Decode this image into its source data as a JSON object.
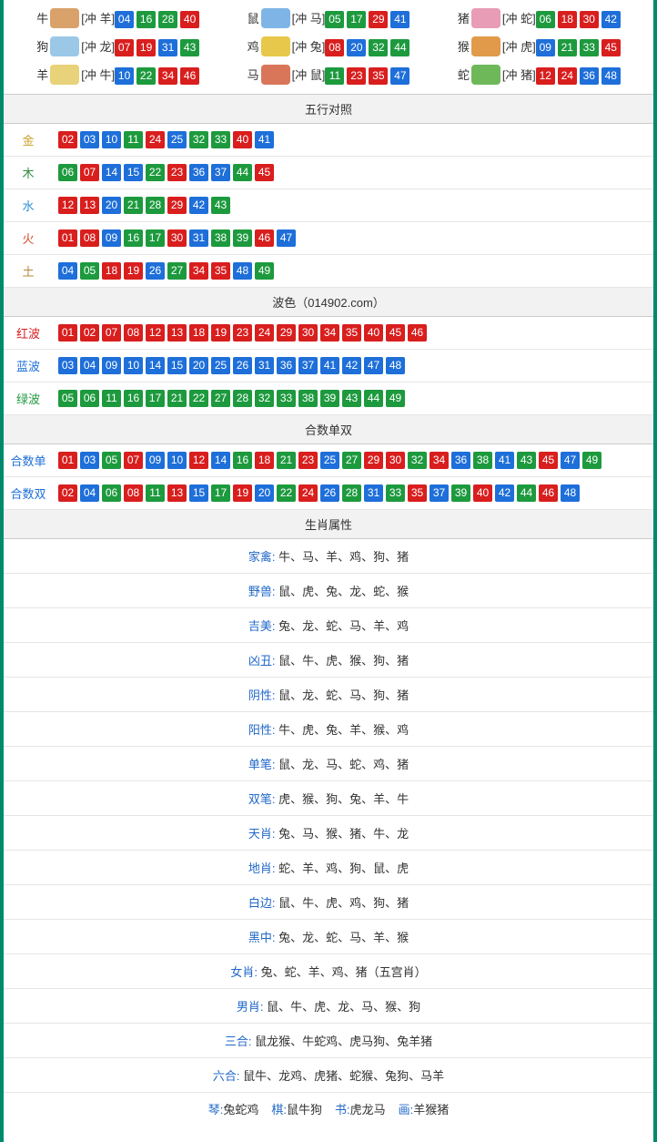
{
  "colors": {
    "red": "#d91e1e",
    "blue": "#1e6fd9",
    "green": "#1d9a3e",
    "border": "#008a6c",
    "hdr_bg": "#f2f2f2",
    "line": "#e5e5e5",
    "text": "#333333",
    "link": "#2168c9",
    "label_gold": "#c9a227",
    "label_wood": "#2e8b3d",
    "label_water": "#2a8dd6",
    "label_fire": "#d94c2a",
    "label_earth": "#b8863b",
    "label_red": "#d91e1e",
    "label_blue": "#1e6fd9",
    "label_green": "#1d9a3e"
  },
  "ball_color_map": {
    "01": "red",
    "02": "red",
    "07": "red",
    "08": "red",
    "12": "red",
    "13": "red",
    "18": "red",
    "19": "red",
    "23": "red",
    "24": "red",
    "29": "red",
    "30": "red",
    "34": "red",
    "35": "red",
    "40": "red",
    "45": "red",
    "46": "red",
    "03": "blue",
    "04": "blue",
    "09": "blue",
    "10": "blue",
    "14": "blue",
    "15": "blue",
    "20": "blue",
    "25": "blue",
    "26": "blue",
    "31": "blue",
    "36": "blue",
    "37": "blue",
    "41": "blue",
    "42": "blue",
    "47": "blue",
    "48": "blue",
    "05": "green",
    "06": "green",
    "11": "green",
    "16": "green",
    "17": "green",
    "21": "green",
    "22": "green",
    "27": "green",
    "28": "green",
    "32": "green",
    "33": "green",
    "38": "green",
    "39": "green",
    "43": "green",
    "44": "green",
    "49": "green"
  },
  "zodiac_img_colors": {
    "牛": "#d9a26b",
    "鼠": "#7fb5e6",
    "猪": "#e89cb5",
    "狗": "#9cc8e8",
    "鸡": "#e8c84a",
    "猴": "#e09a4a",
    "羊": "#e8d27a",
    "马": "#d9765a",
    "蛇": "#6fb85a"
  },
  "zodiac": [
    {
      "name": "牛",
      "conflict": "[冲 羊]",
      "nums": [
        "04",
        "16",
        "28",
        "40"
      ]
    },
    {
      "name": "鼠",
      "conflict": "[冲 马]",
      "nums": [
        "05",
        "17",
        "29",
        "41"
      ]
    },
    {
      "name": "猪",
      "conflict": "[冲 蛇]",
      "nums": [
        "06",
        "18",
        "30",
        "42"
      ]
    },
    {
      "name": "狗",
      "conflict": "[冲 龙]",
      "nums": [
        "07",
        "19",
        "31",
        "43"
      ]
    },
    {
      "name": "鸡",
      "conflict": "[冲 兔]",
      "nums": [
        "08",
        "20",
        "32",
        "44"
      ]
    },
    {
      "name": "猴",
      "conflict": "[冲 虎]",
      "nums": [
        "09",
        "21",
        "33",
        "45"
      ]
    },
    {
      "name": "羊",
      "conflict": "[冲 牛]",
      "nums": [
        "10",
        "22",
        "34",
        "46"
      ]
    },
    {
      "name": "马",
      "conflict": "[冲 鼠]",
      "nums": [
        "11",
        "23",
        "35",
        "47"
      ]
    },
    {
      "name": "蛇",
      "conflict": "[冲 猪]",
      "nums": [
        "12",
        "24",
        "36",
        "48"
      ]
    }
  ],
  "sections": {
    "wuxing_title": "五行对照",
    "wuxing": [
      {
        "label": "金",
        "label_color": "label_gold",
        "nums": [
          "02",
          "03",
          "10",
          "11",
          "24",
          "25",
          "32",
          "33",
          "40",
          "41"
        ]
      },
      {
        "label": "木",
        "label_color": "label_wood",
        "nums": [
          "06",
          "07",
          "14",
          "15",
          "22",
          "23",
          "36",
          "37",
          "44",
          "45"
        ]
      },
      {
        "label": "水",
        "label_color": "label_water",
        "nums": [
          "12",
          "13",
          "20",
          "21",
          "28",
          "29",
          "42",
          "43"
        ]
      },
      {
        "label": "火",
        "label_color": "label_fire",
        "nums": [
          "01",
          "08",
          "09",
          "16",
          "17",
          "30",
          "31",
          "38",
          "39",
          "46",
          "47"
        ]
      },
      {
        "label": "土",
        "label_color": "label_earth",
        "nums": [
          "04",
          "05",
          "18",
          "19",
          "26",
          "27",
          "34",
          "35",
          "48",
          "49"
        ]
      }
    ],
    "bose_title": "波色（014902.com）",
    "bose": [
      {
        "label": "红波",
        "label_color": "label_red",
        "nums": [
          "01",
          "02",
          "07",
          "08",
          "12",
          "13",
          "18",
          "19",
          "23",
          "24",
          "29",
          "30",
          "34",
          "35",
          "40",
          "45",
          "46"
        ]
      },
      {
        "label": "蓝波",
        "label_color": "label_blue",
        "nums": [
          "03",
          "04",
          "09",
          "10",
          "14",
          "15",
          "20",
          "25",
          "26",
          "31",
          "36",
          "37",
          "41",
          "42",
          "47",
          "48"
        ]
      },
      {
        "label": "绿波",
        "label_color": "label_green",
        "nums": [
          "05",
          "06",
          "11",
          "16",
          "17",
          "21",
          "22",
          "27",
          "28",
          "32",
          "33",
          "38",
          "39",
          "43",
          "44",
          "49"
        ]
      }
    ],
    "heshu_title": "合数单双",
    "heshu": [
      {
        "label": "合数单",
        "label_color": "label_blue",
        "nums": [
          "01",
          "03",
          "05",
          "07",
          "09",
          "10",
          "12",
          "14",
          "16",
          "18",
          "21",
          "23",
          "25",
          "27",
          "29",
          "30",
          "32",
          "34",
          "36",
          "38",
          "41",
          "43",
          "45",
          "47",
          "49"
        ]
      },
      {
        "label": "合数双",
        "label_color": "label_blue",
        "nums": [
          "02",
          "04",
          "06",
          "08",
          "11",
          "13",
          "15",
          "17",
          "19",
          "20",
          "22",
          "24",
          "26",
          "28",
          "31",
          "33",
          "35",
          "37",
          "39",
          "40",
          "42",
          "44",
          "46",
          "48"
        ]
      }
    ],
    "attr_title": "生肖属性",
    "attrs": [
      {
        "key": "家禽",
        "val": "牛、马、羊、鸡、狗、猪"
      },
      {
        "key": "野兽",
        "val": "鼠、虎、兔、龙、蛇、猴"
      },
      {
        "key": "吉美",
        "val": "兔、龙、蛇、马、羊、鸡"
      },
      {
        "key": "凶丑",
        "val": "鼠、牛、虎、猴、狗、猪"
      },
      {
        "key": "阴性",
        "val": "鼠、龙、蛇、马、狗、猪"
      },
      {
        "key": "阳性",
        "val": "牛、虎、兔、羊、猴、鸡"
      },
      {
        "key": "单笔",
        "val": "鼠、龙、马、蛇、鸡、猪"
      },
      {
        "key": "双笔",
        "val": "虎、猴、狗、兔、羊、牛"
      },
      {
        "key": "天肖",
        "val": "兔、马、猴、猪、牛、龙"
      },
      {
        "key": "地肖",
        "val": "蛇、羊、鸡、狗、鼠、虎"
      },
      {
        "key": "白边",
        "val": "鼠、牛、虎、鸡、狗、猪"
      },
      {
        "key": "黑中",
        "val": "兔、龙、蛇、马、羊、猴"
      },
      {
        "key": "女肖",
        "val": "兔、蛇、羊、鸡、猪（五宫肖）"
      },
      {
        "key": "男肖",
        "val": "鼠、牛、虎、龙、马、猴、狗"
      },
      {
        "key": "三合",
        "val": "鼠龙猴、牛蛇鸡、虎马狗、兔羊猪"
      },
      {
        "key": "六合",
        "val": "鼠牛、龙鸡、虎猪、蛇猴、兔狗、马羊"
      }
    ],
    "bottom": [
      {
        "key": "琴",
        "val": "兔蛇鸡"
      },
      {
        "key": "棋",
        "val": "鼠牛狗"
      },
      {
        "key": "书",
        "val": "虎龙马"
      },
      {
        "key": "画",
        "val": "羊猴猪"
      }
    ]
  }
}
